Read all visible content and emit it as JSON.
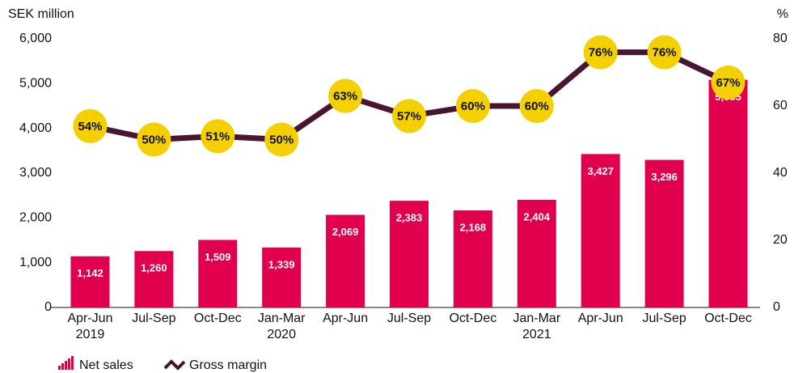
{
  "chart_data": {
    "type": "bar",
    "y_label": "SEK million",
    "y2_label": "%",
    "categories": [
      "Apr-Jun",
      "Jul-Sep",
      "Oct-Dec",
      "Jan-Mar",
      "Apr-Jun",
      "Jul-Sep",
      "Oct-Dec",
      "Jan-Mar",
      "Apr-Jun",
      "Jul-Sep",
      "Oct-Dec"
    ],
    "years": [
      "2019",
      null,
      null,
      "2020",
      null,
      null,
      null,
      "2021",
      null,
      null,
      null
    ],
    "series": [
      {
        "name": "Net sales",
        "type": "bar",
        "color": "#e0004d",
        "values": [
          1142,
          1260,
          1509,
          1339,
          2069,
          2383,
          2168,
          2404,
          3427,
          3296,
          5085
        ],
        "value_labels": [
          "1,142",
          "1,260",
          "1,509",
          "1,339",
          "2,069",
          "2,383",
          "2,168",
          "2,404",
          "3,427",
          "3,296",
          "5,085"
        ]
      },
      {
        "name": "Gross margin",
        "type": "line",
        "axis": "y2",
        "color": "#4a1530",
        "marker_color": "#f5d000",
        "values": [
          54,
          50,
          51,
          50,
          63,
          57,
          60,
          60,
          76,
          76,
          67
        ],
        "value_labels": [
          "54%",
          "50%",
          "51%",
          "50%",
          "63%",
          "57%",
          "60%",
          "60%",
          "76%",
          "76%",
          "67%"
        ]
      }
    ],
    "ylim": [
      0,
      6000
    ],
    "yticks": [
      0,
      {
        "value": 1000,
        "label": "1,000"
      },
      {
        "value": 2000,
        "label": "2,000"
      },
      {
        "value": 3000,
        "label": "3,000"
      },
      {
        "value": 4000,
        "label": "4,000"
      },
      {
        "value": 5000,
        "label": "5,000"
      },
      {
        "value": 6000,
        "label": "6,000"
      }
    ],
    "y2lim": [
      0,
      80
    ],
    "y2ticks": [
      0,
      20,
      40,
      60,
      80
    ],
    "grid": false
  }
}
